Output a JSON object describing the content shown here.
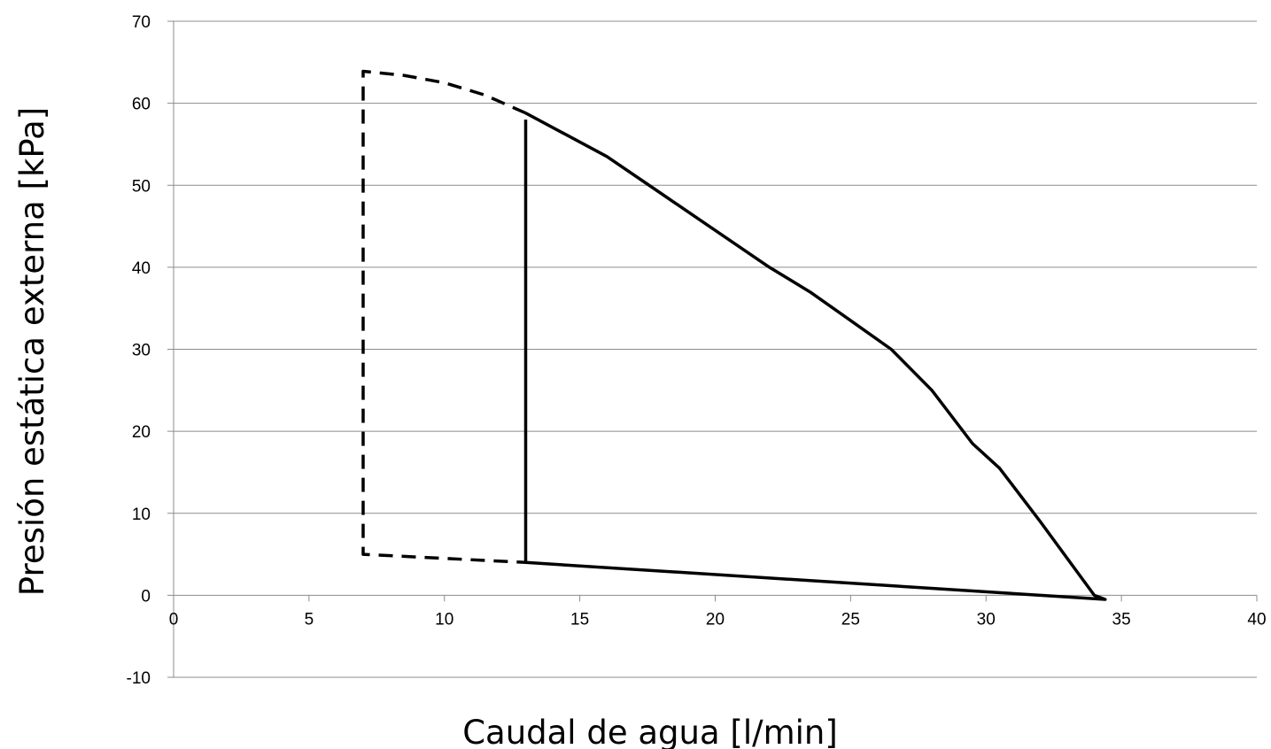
{
  "chart_data": {
    "type": "line",
    "title": "",
    "xlabel": "Caudal de agua [l/min]",
    "ylabel": "Presión estática externa [kPa]",
    "xlim": [
      0,
      40
    ],
    "ylim": [
      -10,
      70
    ],
    "x_ticks": [
      0,
      5,
      10,
      15,
      20,
      25,
      30,
      35,
      40
    ],
    "y_ticks": [
      -10,
      0,
      10,
      20,
      30,
      40,
      50,
      60,
      70
    ],
    "x_tick_labels": [
      "0",
      "5",
      "10",
      "15",
      "20",
      "25",
      "30",
      "35",
      "40"
    ],
    "y_tick_labels": [
      "-10",
      "0",
      "10",
      "20",
      "30",
      "40",
      "50",
      "60",
      "70"
    ],
    "grid": "horizontal",
    "line_color": "#000000",
    "series": [
      {
        "style": "dashed",
        "x": [
          13.0,
          11.5,
          10.0,
          8.5,
          7.0,
          7.0,
          13.0
        ],
        "y": [
          58.8,
          61.0,
          62.5,
          63.4,
          63.9,
          5.0,
          4.0
        ]
      },
      {
        "style": "solid",
        "x": [
          13.0,
          13.0,
          34.4,
          34.0,
          32.0,
          30.5,
          29.5,
          28.0,
          26.5,
          25.0,
          23.5,
          22.0,
          20.0,
          18.0,
          16.0,
          13.0
        ],
        "y": [
          58.0,
          4.0,
          -0.5,
          0.0,
          9.0,
          15.5,
          18.5,
          25.0,
          30.0,
          33.5,
          37.0,
          40.0,
          44.5,
          49.0,
          53.5,
          58.8
        ]
      }
    ]
  }
}
